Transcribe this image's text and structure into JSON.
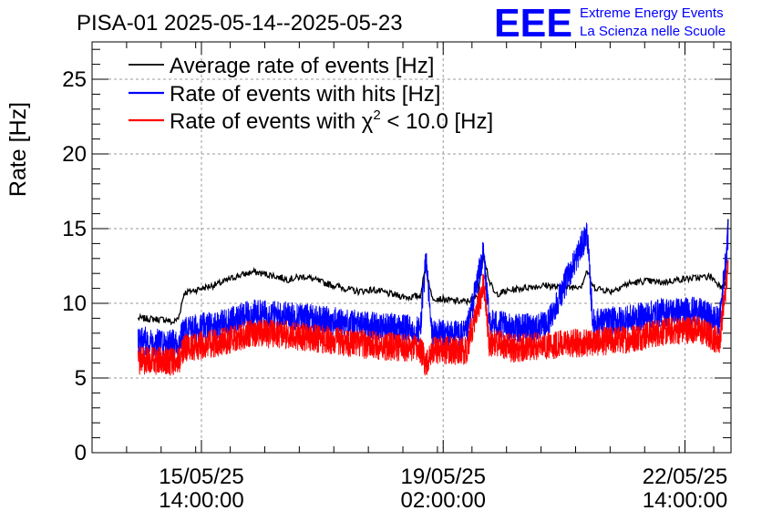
{
  "header": {
    "title": "PISA-01 2025-05-14--2025-05-23",
    "logo_letters": "EEE",
    "logo_line1": "Extreme Energy Events",
    "logo_line2": "La Scienza nelle Scuole"
  },
  "chart_data": {
    "type": "line",
    "title": "PISA-01 2025-05-14--2025-05-23",
    "ylabel": "Rate [Hz]",
    "xlabel": "",
    "ylim": [
      0,
      27.5
    ],
    "xlim": [
      "2025-05-14 00:00",
      "2025-05-23 06:00"
    ],
    "y_ticks": [
      0,
      5,
      10,
      15,
      20,
      25
    ],
    "x_tick_labels": [
      {
        "x": "2025-05-15 14:00",
        "date": "15/05/25",
        "time": "14:00:00"
      },
      {
        "x": "2025-05-19 02:00",
        "date": "19/05/25",
        "time": "02:00:00"
      },
      {
        "x": "2025-05-22 14:00",
        "date": "22/05/25",
        "time": "14:00:00"
      }
    ],
    "grid": true,
    "legend_position": "top-left",
    "legend": [
      {
        "series": "average",
        "label": "Average rate of events [Hz]",
        "color": "#000000"
      },
      {
        "series": "hits",
        "label": "Rate of events with hits [Hz]",
        "color": "#0000ff"
      },
      {
        "series": "chi2",
        "label_prefix": "Rate of events with ",
        "label_chi": "χ",
        "label_sup": "2",
        "label_suffix": " < 10.0 [Hz]",
        "color": "#ff0000"
      }
    ],
    "series": [
      {
        "name": "Average rate of events [Hz]",
        "color": "#000000",
        "points": [
          [
            "2025-05-14 16:00",
            9.0
          ],
          [
            "2025-05-15 02:00",
            8.9
          ],
          [
            "2025-05-15 04:00",
            8.7
          ],
          [
            "2025-05-15 06:00",
            9.0
          ],
          [
            "2025-05-15 08:00",
            10.7
          ],
          [
            "2025-05-15 14:00",
            11.0
          ],
          [
            "2025-05-15 20:00",
            11.3
          ],
          [
            "2025-05-16 02:00",
            11.8
          ],
          [
            "2025-05-16 08:00",
            12.1
          ],
          [
            "2025-05-16 14:00",
            11.9
          ],
          [
            "2025-05-16 20:00",
            11.6
          ],
          [
            "2025-05-17 02:00",
            11.8
          ],
          [
            "2025-05-17 08:00",
            11.4
          ],
          [
            "2025-05-17 14:00",
            11.1
          ],
          [
            "2025-05-17 20:00",
            10.8
          ],
          [
            "2025-05-18 02:00",
            10.9
          ],
          [
            "2025-05-18 08:00",
            10.6
          ],
          [
            "2025-05-18 14:00",
            10.4
          ],
          [
            "2025-05-18 18:00",
            10.5
          ],
          [
            "2025-05-18 20:00",
            12.5
          ],
          [
            "2025-05-18 22:00",
            10.4
          ],
          [
            "2025-05-19 04:00",
            10.2
          ],
          [
            "2025-05-19 10:00",
            10.1
          ],
          [
            "2025-05-19 14:00",
            10.5
          ],
          [
            "2025-05-19 16:00",
            13.4
          ],
          [
            "2025-05-19 18:00",
            11.5
          ],
          [
            "2025-05-19 20:00",
            10.6
          ],
          [
            "2025-05-20 02:00",
            10.9
          ],
          [
            "2025-05-20 08:00",
            11.1
          ],
          [
            "2025-05-20 14:00",
            11.2
          ],
          [
            "2025-05-20 20:00",
            11.0
          ],
          [
            "2025-05-21 02:00",
            11.2
          ],
          [
            "2025-05-21 04:00",
            12.2
          ],
          [
            "2025-05-21 06:00",
            11.1
          ],
          [
            "2025-05-21 12:00",
            10.8
          ],
          [
            "2025-05-21 18:00",
            11.3
          ],
          [
            "2025-05-22 00:00",
            11.5
          ],
          [
            "2025-05-22 06:00",
            11.4
          ],
          [
            "2025-05-22 12:00",
            11.6
          ],
          [
            "2025-05-22 18:00",
            11.7
          ],
          [
            "2025-05-22 23:00",
            11.8
          ],
          [
            "2025-05-23 02:00",
            11.2
          ],
          [
            "2025-05-23 04:00",
            11.3
          ],
          [
            "2025-05-23 05:00",
            15.7
          ]
        ]
      },
      {
        "name": "Rate of events with hits [Hz]",
        "color": "#0000ff",
        "points": [
          [
            "2025-05-14 16:00",
            7.5
          ],
          [
            "2025-05-15 06:00",
            7.3
          ],
          [
            "2025-05-15 08:00",
            8.2
          ],
          [
            "2025-05-15 20:00",
            8.6
          ],
          [
            "2025-05-16 08:00",
            9.3
          ],
          [
            "2025-05-16 20:00",
            9.2
          ],
          [
            "2025-05-17 08:00",
            8.9
          ],
          [
            "2025-05-17 20:00",
            8.6
          ],
          [
            "2025-05-18 08:00",
            8.4
          ],
          [
            "2025-05-18 18:00",
            8.2
          ],
          [
            "2025-05-18 20:00",
            13.1
          ],
          [
            "2025-05-18 22:00",
            8.0
          ],
          [
            "2025-05-19 10:00",
            7.9
          ],
          [
            "2025-05-19 16:00",
            13.4
          ],
          [
            "2025-05-19 18:00",
            8.8
          ],
          [
            "2025-05-20 02:00",
            8.3
          ],
          [
            "2025-05-20 14:00",
            8.5
          ],
          [
            "2025-05-21 04:00",
            14.7
          ],
          [
            "2025-05-21 06:00",
            8.7
          ],
          [
            "2025-05-21 18:00",
            8.9
          ],
          [
            "2025-05-22 06:00",
            9.4
          ],
          [
            "2025-05-22 18:00",
            9.5
          ],
          [
            "2025-05-23 02:00",
            8.8
          ],
          [
            "2025-05-23 05:00",
            14.6
          ]
        ]
      },
      {
        "name": "Rate of events with χ2 < 10.0 [Hz]",
        "color": "#ff0000",
        "points": [
          [
            "2025-05-14 16:00",
            6.2
          ],
          [
            "2025-05-15 06:00",
            6.1
          ],
          [
            "2025-05-15 08:00",
            7.0
          ],
          [
            "2025-05-15 20:00",
            7.4
          ],
          [
            "2025-05-16 08:00",
            8.0
          ],
          [
            "2025-05-16 20:00",
            7.9
          ],
          [
            "2025-05-17 08:00",
            7.6
          ],
          [
            "2025-05-17 20:00",
            7.3
          ],
          [
            "2025-05-18 08:00",
            7.1
          ],
          [
            "2025-05-18 18:00",
            6.9
          ],
          [
            "2025-05-18 20:00",
            6.0
          ],
          [
            "2025-05-18 22:00",
            6.9
          ],
          [
            "2025-05-19 10:00",
            6.8
          ],
          [
            "2025-05-19 16:00",
            11.2
          ],
          [
            "2025-05-19 18:00",
            7.4
          ],
          [
            "2025-05-20 02:00",
            7.0
          ],
          [
            "2025-05-20 14:00",
            7.2
          ],
          [
            "2025-05-21 06:00",
            7.4
          ],
          [
            "2025-05-21 18:00",
            7.6
          ],
          [
            "2025-05-22 06:00",
            8.1
          ],
          [
            "2025-05-22 18:00",
            8.3
          ],
          [
            "2025-05-23 02:00",
            7.5
          ],
          [
            "2025-05-23 05:00",
            12.4
          ]
        ]
      }
    ]
  }
}
